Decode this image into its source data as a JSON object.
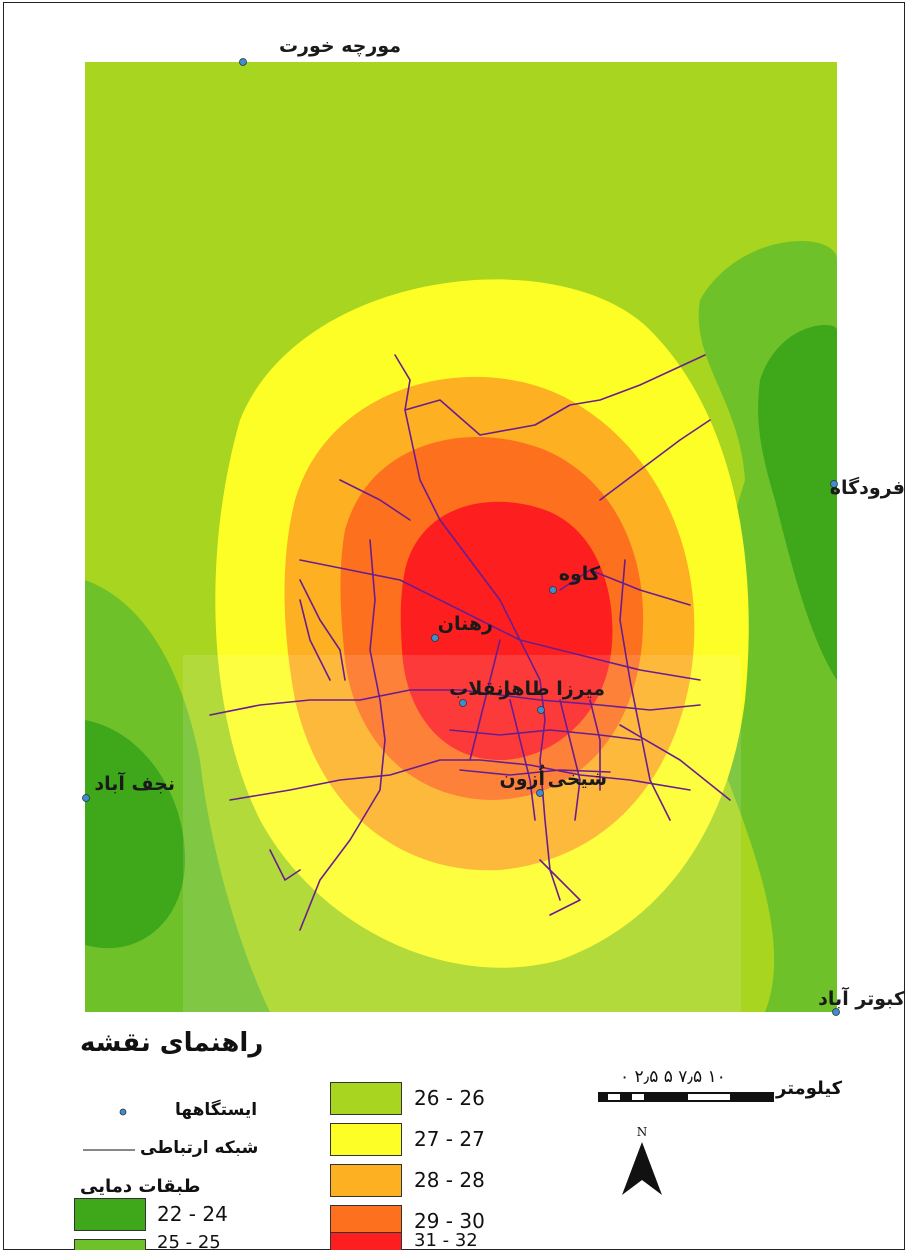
{
  "map": {
    "stations": [
      {
        "name": "مورچه خورت",
        "id": "murche-khort"
      },
      {
        "name": "فرودگاه",
        "id": "airport"
      },
      {
        "name": "کاوه",
        "id": "kaveh"
      },
      {
        "name": "رهنان",
        "id": "rehnan"
      },
      {
        "name": "انقلاب",
        "id": "enghelab"
      },
      {
        "name": "میرزا طاهر",
        "id": "mirza-taher"
      },
      {
        "name": "اُزون",
        "id": "ozun"
      },
      {
        "name": "شیخی",
        "id": "sheikhi"
      },
      {
        "name": "نجف آباد",
        "id": "najafabad"
      },
      {
        "name": "کبوتر آباد",
        "id": "kabutarabad"
      }
    ],
    "zone_colors": {
      "22-24": "#3fa71a",
      "25-25": "#6fc12a",
      "26-26": "#a8d51f",
      "27-27": "#fefe27",
      "28-28": "#fdb021",
      "29-30": "#fd701e",
      "31-32": "#fd1f1f"
    }
  },
  "legend": {
    "title": "راهنمای نقشه",
    "stations_label": "ایستگاهها",
    "network_label": "شبکه ارتباطی",
    "classes_title": "طبقات دمایی",
    "classes": [
      {
        "label": "22 - 24",
        "color": "#3fa71a"
      },
      {
        "label": "25 - 25",
        "color": "#6fc12a"
      },
      {
        "label": "26 - 26",
        "color": "#a8d51f"
      },
      {
        "label": "27 - 27",
        "color": "#fefe27"
      },
      {
        "label": "28 - 28",
        "color": "#fdb021"
      },
      {
        "label": "29 - 30",
        "color": "#fd701e"
      },
      {
        "label": "31 - 32",
        "color": "#fd1f1f"
      }
    ]
  },
  "scale_bar": {
    "ticks": "۰ ۲٫۵ ۵ ۷٫۵ ۱۰",
    "unit": "کیلومتر"
  },
  "north_arrow": {
    "label": "N"
  }
}
